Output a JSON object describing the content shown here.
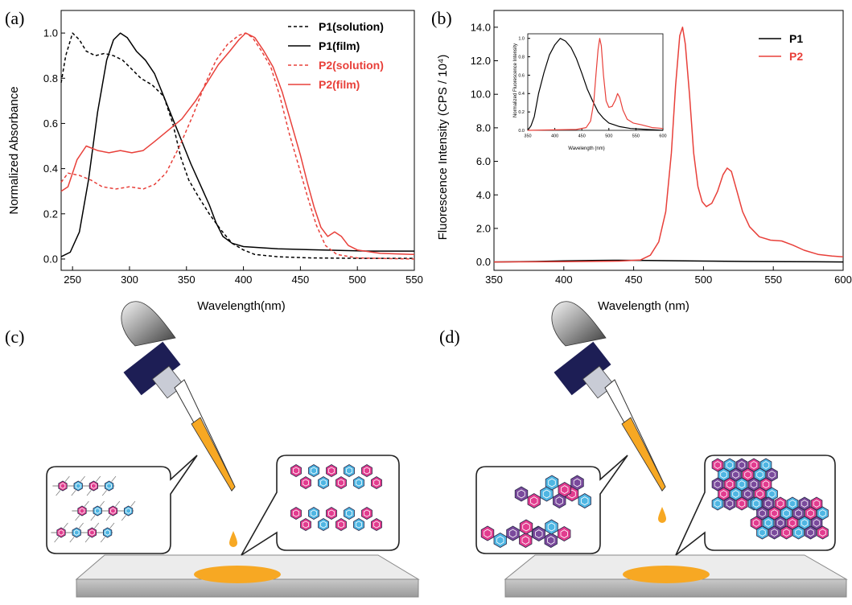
{
  "chart_data": [
    {
      "panel": "(a)",
      "type": "line",
      "xlabel": "Wavelength(nm)",
      "ylabel": "Normalized Absorbance",
      "xlim": [
        240,
        550
      ],
      "ylim": [
        -0.05,
        1.1
      ],
      "x_ticks": [
        "250",
        "300",
        "350",
        "400",
        "450",
        "500",
        "550"
      ],
      "y_ticks": [
        "0.0",
        "0.2",
        "0.4",
        "0.6",
        "0.8",
        "1.0"
      ],
      "legend_position": "top-right",
      "series": [
        {
          "name": "P1(solution)",
          "color": "#000000",
          "dash": true,
          "points": [
            [
              240,
              0.78
            ],
            [
              244,
              0.9
            ],
            [
              250,
              1.0
            ],
            [
              256,
              0.97
            ],
            [
              262,
              0.92
            ],
            [
              270,
              0.9
            ],
            [
              278,
              0.91
            ],
            [
              286,
              0.9
            ],
            [
              294,
              0.88
            ],
            [
              302,
              0.84
            ],
            [
              310,
              0.8
            ],
            [
              320,
              0.77
            ],
            [
              330,
              0.72
            ],
            [
              338,
              0.6
            ],
            [
              345,
              0.45
            ],
            [
              352,
              0.35
            ],
            [
              360,
              0.28
            ],
            [
              370,
              0.2
            ],
            [
              380,
              0.13
            ],
            [
              390,
              0.07
            ],
            [
              400,
              0.04
            ],
            [
              410,
              0.02
            ],
            [
              430,
              0.01
            ],
            [
              460,
              0.005
            ],
            [
              500,
              0.003
            ],
            [
              550,
              0.003
            ]
          ]
        },
        {
          "name": "P1(film)",
          "color": "#000000",
          "dash": false,
          "points": [
            [
              240,
              0.01
            ],
            [
              248,
              0.03
            ],
            [
              256,
              0.12
            ],
            [
              264,
              0.35
            ],
            [
              272,
              0.65
            ],
            [
              280,
              0.88
            ],
            [
              286,
              0.97
            ],
            [
              292,
              1.0
            ],
            [
              298,
              0.98
            ],
            [
              306,
              0.92
            ],
            [
              314,
              0.88
            ],
            [
              322,
              0.82
            ],
            [
              330,
              0.72
            ],
            [
              338,
              0.62
            ],
            [
              346,
              0.52
            ],
            [
              354,
              0.42
            ],
            [
              362,
              0.33
            ],
            [
              370,
              0.24
            ],
            [
              376,
              0.16
            ],
            [
              382,
              0.1
            ],
            [
              390,
              0.07
            ],
            [
              400,
              0.055
            ],
            [
              430,
              0.045
            ],
            [
              470,
              0.04
            ],
            [
              510,
              0.035
            ],
            [
              550,
              0.035
            ]
          ]
        },
        {
          "name": "P2(solution)",
          "color": "#e8403a",
          "dash": true,
          "points": [
            [
              240,
              0.34
            ],
            [
              246,
              0.38
            ],
            [
              256,
              0.37
            ],
            [
              266,
              0.35
            ],
            [
              276,
              0.32
            ],
            [
              288,
              0.31
            ],
            [
              300,
              0.32
            ],
            [
              312,
              0.31
            ],
            [
              322,
              0.33
            ],
            [
              332,
              0.38
            ],
            [
              344,
              0.5
            ],
            [
              356,
              0.64
            ],
            [
              366,
              0.77
            ],
            [
              376,
              0.88
            ],
            [
              386,
              0.95
            ],
            [
              396,
              0.99
            ],
            [
              402,
              1.0
            ],
            [
              408,
              0.98
            ],
            [
              416,
              0.92
            ],
            [
              424,
              0.85
            ],
            [
              432,
              0.72
            ],
            [
              440,
              0.56
            ],
            [
              448,
              0.42
            ],
            [
              456,
              0.28
            ],
            [
              464,
              0.15
            ],
            [
              472,
              0.06
            ],
            [
              482,
              0.02
            ],
            [
              500,
              0.005
            ],
            [
              550,
              0.0
            ]
          ]
        },
        {
          "name": "P2(film)",
          "color": "#e8403a",
          "dash": false,
          "points": [
            [
              240,
              0.3
            ],
            [
              246,
              0.32
            ],
            [
              254,
              0.44
            ],
            [
              262,
              0.5
            ],
            [
              272,
              0.48
            ],
            [
              282,
              0.47
            ],
            [
              292,
              0.48
            ],
            [
              302,
              0.47
            ],
            [
              312,
              0.48
            ],
            [
              322,
              0.52
            ],
            [
              334,
              0.57
            ],
            [
              346,
              0.62
            ],
            [
              358,
              0.7
            ],
            [
              368,
              0.78
            ],
            [
              378,
              0.86
            ],
            [
              388,
              0.92
            ],
            [
              396,
              0.97
            ],
            [
              402,
              1.0
            ],
            [
              410,
              0.98
            ],
            [
              418,
              0.92
            ],
            [
              426,
              0.85
            ],
            [
              434,
              0.74
            ],
            [
              442,
              0.6
            ],
            [
              450,
              0.46
            ],
            [
              456,
              0.34
            ],
            [
              462,
              0.23
            ],
            [
              468,
              0.14
            ],
            [
              474,
              0.1
            ],
            [
              480,
              0.12
            ],
            [
              486,
              0.1
            ],
            [
              492,
              0.06
            ],
            [
              500,
              0.04
            ],
            [
              520,
              0.025
            ],
            [
              550,
              0.02
            ]
          ]
        }
      ]
    },
    {
      "panel": "(b)",
      "type": "line",
      "xlabel": "Wavelength (nm)",
      "ylabel": "Fluorescence Intensity (CPS / 10⁴)",
      "xlim": [
        350,
        600
      ],
      "ylim": [
        -0.5,
        15
      ],
      "x_ticks": [
        "350",
        "400",
        "450",
        "500",
        "550",
        "600"
      ],
      "y_ticks": [
        "0.0",
        "2.0",
        "4.0",
        "6.0",
        "8.0",
        "10.0",
        "12.0",
        "14.0"
      ],
      "legend_position": "top-right",
      "series": [
        {
          "name": "P1",
          "color": "#000000",
          "points": [
            [
              350,
              0.0
            ],
            [
              380,
              0.03
            ],
            [
              400,
              0.06
            ],
            [
              420,
              0.09
            ],
            [
              440,
              0.1
            ],
            [
              460,
              0.09
            ],
            [
              480,
              0.07
            ],
            [
              500,
              0.05
            ],
            [
              530,
              0.03
            ],
            [
              560,
              0.02
            ],
            [
              600,
              0.0
            ]
          ]
        },
        {
          "name": "P2",
          "color": "#e8403a",
          "points": [
            [
              350,
              0.0
            ],
            [
              400,
              0.02
            ],
            [
              440,
              0.05
            ],
            [
              455,
              0.12
            ],
            [
              462,
              0.4
            ],
            [
              468,
              1.2
            ],
            [
              473,
              3.0
            ],
            [
              477,
              6.5
            ],
            [
              480,
              10.5
            ],
            [
              483,
              13.5
            ],
            [
              485,
              14.0
            ],
            [
              487,
              13.0
            ],
            [
              490,
              10.0
            ],
            [
              493,
              6.5
            ],
            [
              496,
              4.5
            ],
            [
              499,
              3.6
            ],
            [
              502,
              3.3
            ],
            [
              506,
              3.5
            ],
            [
              510,
              4.2
            ],
            [
              514,
              5.2
            ],
            [
              517,
              5.6
            ],
            [
              520,
              5.4
            ],
            [
              524,
              4.2
            ],
            [
              528,
              3.0
            ],
            [
              533,
              2.1
            ],
            [
              540,
              1.5
            ],
            [
              548,
              1.3
            ],
            [
              556,
              1.25
            ],
            [
              564,
              1.0
            ],
            [
              572,
              0.7
            ],
            [
              582,
              0.45
            ],
            [
              592,
              0.35
            ],
            [
              600,
              0.3
            ]
          ]
        }
      ]
    },
    {
      "panel": "(b) inset",
      "type": "line",
      "xlabel": "Wavelength (nm)",
      "ylabel": "Normalized Fluorescence Intensity",
      "xlim": [
        350,
        600
      ],
      "ylim": [
        0,
        1.05
      ],
      "x_ticks": [
        "350",
        "400",
        "450",
        "500",
        "550",
        "600"
      ],
      "y_ticks": [
        "0.0",
        "0.2",
        "0.4",
        "0.6",
        "0.8",
        "1.0"
      ],
      "series": [
        {
          "name": "P1",
          "color": "#000000",
          "points": [
            [
              350,
              0.0
            ],
            [
              356,
              0.05
            ],
            [
              362,
              0.15
            ],
            [
              370,
              0.4
            ],
            [
              380,
              0.63
            ],
            [
              390,
              0.82
            ],
            [
              400,
              0.93
            ],
            [
              410,
              1.0
            ],
            [
              420,
              0.97
            ],
            [
              430,
              0.9
            ],
            [
              440,
              0.78
            ],
            [
              450,
              0.62
            ],
            [
              460,
              0.45
            ],
            [
              470,
              0.32
            ],
            [
              480,
              0.2
            ],
            [
              490,
              0.13
            ],
            [
              500,
              0.08
            ],
            [
              520,
              0.04
            ],
            [
              540,
              0.02
            ],
            [
              570,
              0.01
            ],
            [
              600,
              0.0
            ]
          ]
        },
        {
          "name": "P2",
          "color": "#e8403a",
          "points": [
            [
              350,
              0.0
            ],
            [
              440,
              0.01
            ],
            [
              458,
              0.03
            ],
            [
              466,
              0.1
            ],
            [
              472,
              0.3
            ],
            [
              476,
              0.6
            ],
            [
              480,
              0.88
            ],
            [
              483,
              1.0
            ],
            [
              486,
              0.92
            ],
            [
              490,
              0.6
            ],
            [
              495,
              0.32
            ],
            [
              500,
              0.25
            ],
            [
              506,
              0.26
            ],
            [
              512,
              0.33
            ],
            [
              516,
              0.4
            ],
            [
              520,
              0.36
            ],
            [
              526,
              0.22
            ],
            [
              534,
              0.12
            ],
            [
              545,
              0.08
            ],
            [
              560,
              0.06
            ],
            [
              580,
              0.03
            ],
            [
              600,
              0.02
            ]
          ]
        }
      ]
    }
  ],
  "schematics": {
    "panel_c_letter": "(c)",
    "panel_d_letter": "(d)",
    "colors": {
      "magenta": "#e23c8f",
      "cyan": "#4fb6e3",
      "purple": "#7a4a9c",
      "orange": "#f7a823",
      "navy": "#1d1e55"
    }
  }
}
